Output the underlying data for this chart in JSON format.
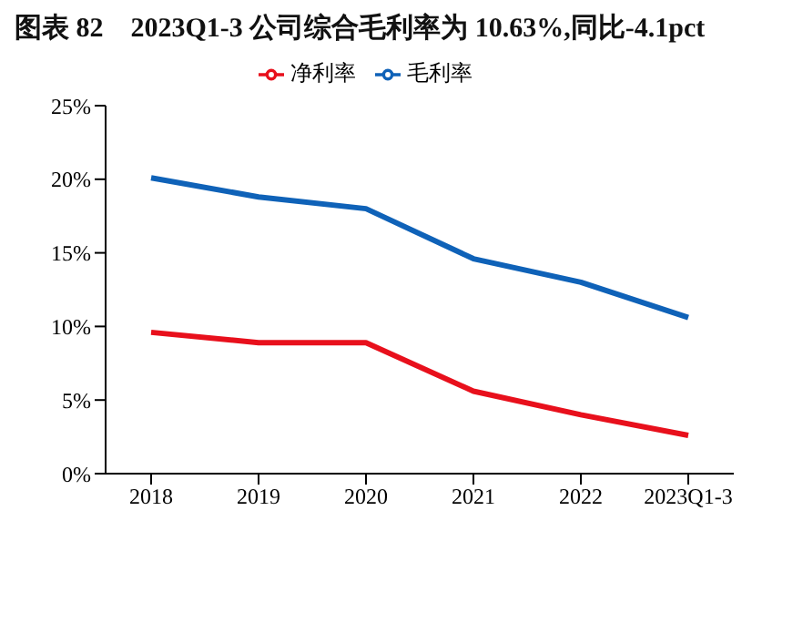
{
  "chart_data": {
    "type": "line",
    "title": "图表 82　2023Q1-3 公司综合毛利率为 10.63%,同比-4.1pct",
    "categories": [
      "2018",
      "2019",
      "2020",
      "2021",
      "2022",
      "2023Q1-3"
    ],
    "series": [
      {
        "name": "毛利率",
        "color": "#0f62b8",
        "values": [
          20.1,
          18.8,
          18.0,
          14.6,
          13.0,
          10.6
        ]
      },
      {
        "name": "净利率",
        "color": "#e8101c",
        "values": [
          9.6,
          8.9,
          8.9,
          5.6,
          4.0,
          2.6
        ]
      }
    ],
    "ylim": [
      0,
      25
    ],
    "yticks": [
      {
        "value": 0,
        "label": "0%"
      },
      {
        "value": 5,
        "label": "5%"
      },
      {
        "value": 10,
        "label": "10%"
      },
      {
        "value": 15,
        "label": "15%"
      },
      {
        "value": 20,
        "label": "20%"
      },
      {
        "value": 25,
        "label": "25%"
      }
    ],
    "grid": false,
    "legend": "top",
    "marker": "none",
    "line_style": "solid"
  }
}
